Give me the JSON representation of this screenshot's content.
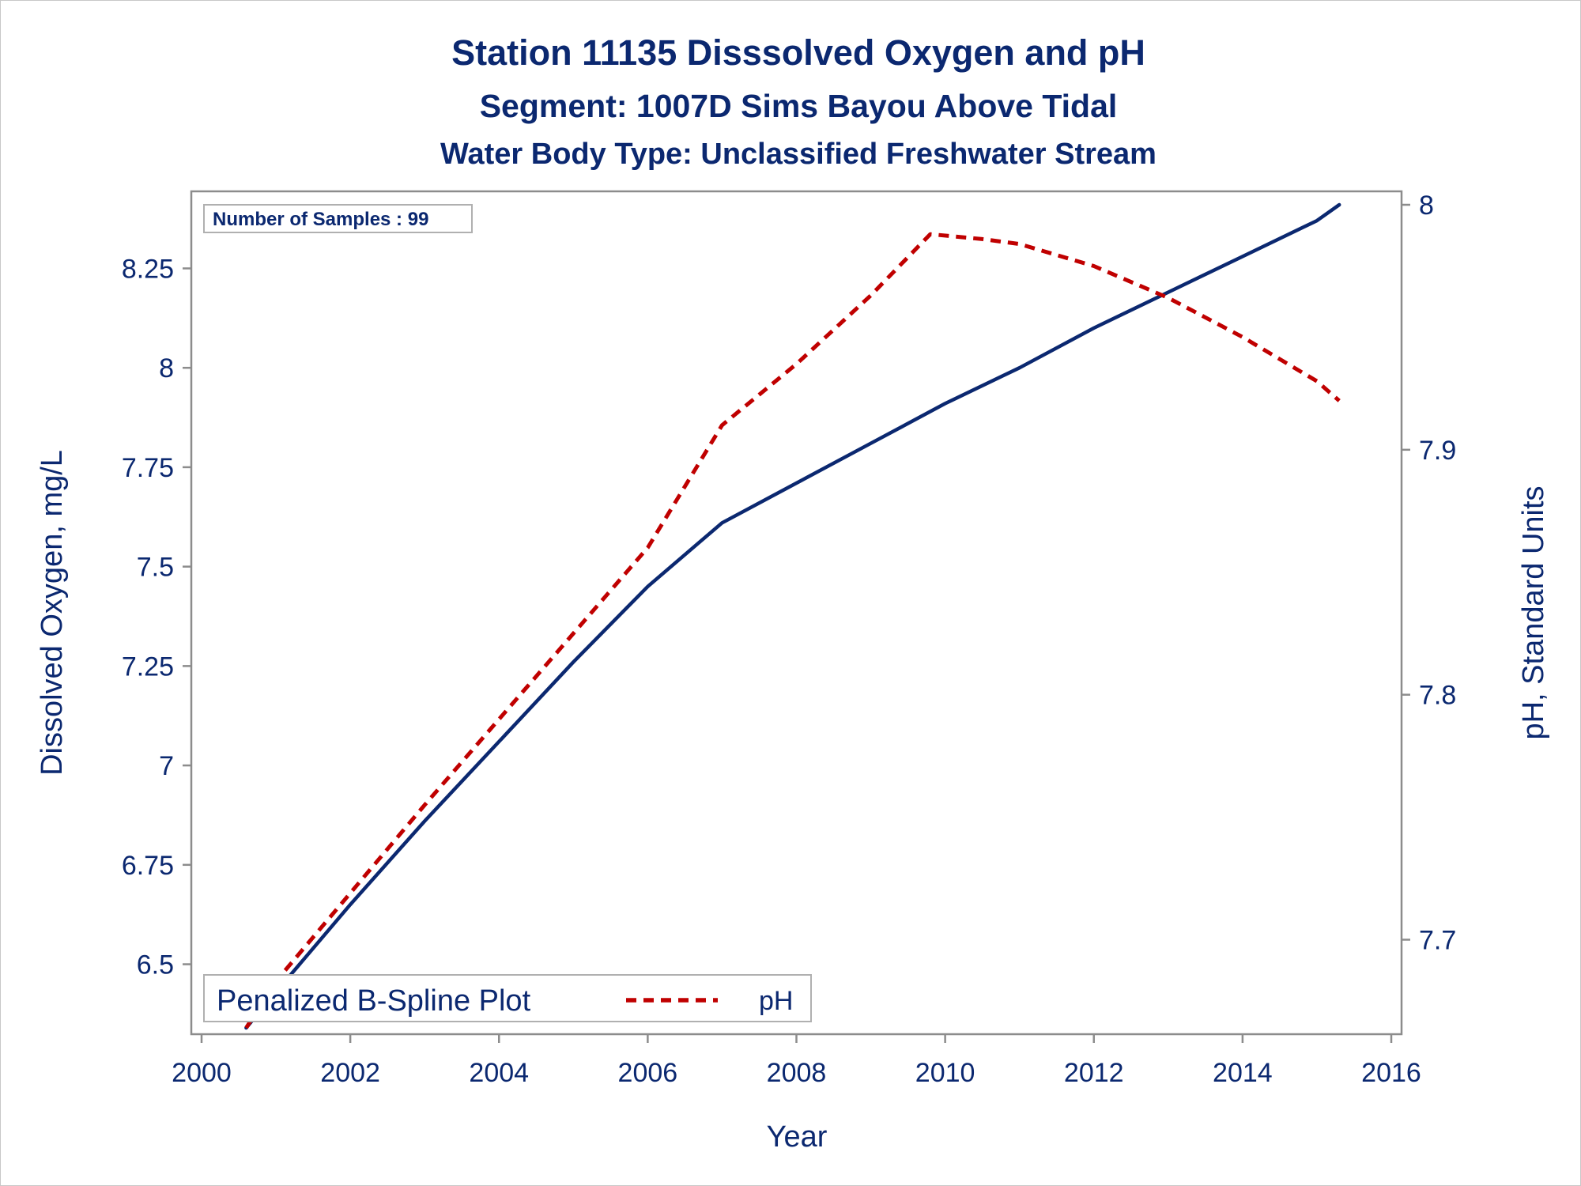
{
  "chart_data": {
    "type": "line",
    "title": "Station 11135   Disssolved Oxygen and pH",
    "subtitle": "Segment: 1007D  Sims Bayou Above Tidal",
    "subtitle2": "Water Body Type: Unclassified Freshwater Stream",
    "xlabel": "Year",
    "ylabel": "Dissolved Oxygen, mg/L",
    "y2label": "pH, Standard Units",
    "xlim": [
      2000,
      2016
    ],
    "ylim": [
      6.34,
      8.41
    ],
    "y2lim": [
      7.664,
      8.0
    ],
    "x_ticks": [
      "2000",
      "2002",
      "2004",
      "2006",
      "2008",
      "2010",
      "2012",
      "2014",
      "2016"
    ],
    "y_ticks": [
      "6.5",
      "6.75",
      "7",
      "7.25",
      "7.5",
      "7.75",
      "8",
      "8.25"
    ],
    "y2_ticks": [
      "7.7",
      "7.8",
      "7.9",
      "8"
    ],
    "inset_label": "Number of Samples : 99",
    "legend": {
      "title": "Penalized B-Spline Plot",
      "placement": "bottom-left"
    },
    "grid": false,
    "series": [
      {
        "name": "",
        "axis": "left",
        "color": "#0b2870",
        "style": "solid",
        "x": [
          2000.6,
          2001.0,
          2002.0,
          2003.0,
          2004.0,
          2005.0,
          2006.0,
          2007.0,
          2008.0,
          2009.0,
          2010.0,
          2011.0,
          2012.0,
          2013.0,
          2014.0,
          2015.0,
          2015.3
        ],
        "y": [
          6.34,
          6.43,
          6.65,
          6.86,
          7.06,
          7.26,
          7.45,
          7.61,
          7.71,
          7.81,
          7.91,
          8.0,
          8.1,
          8.19,
          8.28,
          8.37,
          8.41
        ]
      },
      {
        "name": "pH",
        "axis": "right",
        "color": "#c00000",
        "style": "dashed",
        "x": [
          2000.6,
          2001.0,
          2002.0,
          2003.0,
          2004.0,
          2005.0,
          2006.0,
          2007.0,
          2008.0,
          2009.0,
          2009.8,
          2010.5,
          2011.0,
          2012.0,
          2013.0,
          2014.0,
          2015.0,
          2015.3
        ],
        "y": [
          7.664,
          7.683,
          7.719,
          7.755,
          7.79,
          7.825,
          7.86,
          7.91,
          7.935,
          7.963,
          7.988,
          7.986,
          7.984,
          7.975,
          7.962,
          7.946,
          7.928,
          7.92
        ]
      }
    ]
  }
}
